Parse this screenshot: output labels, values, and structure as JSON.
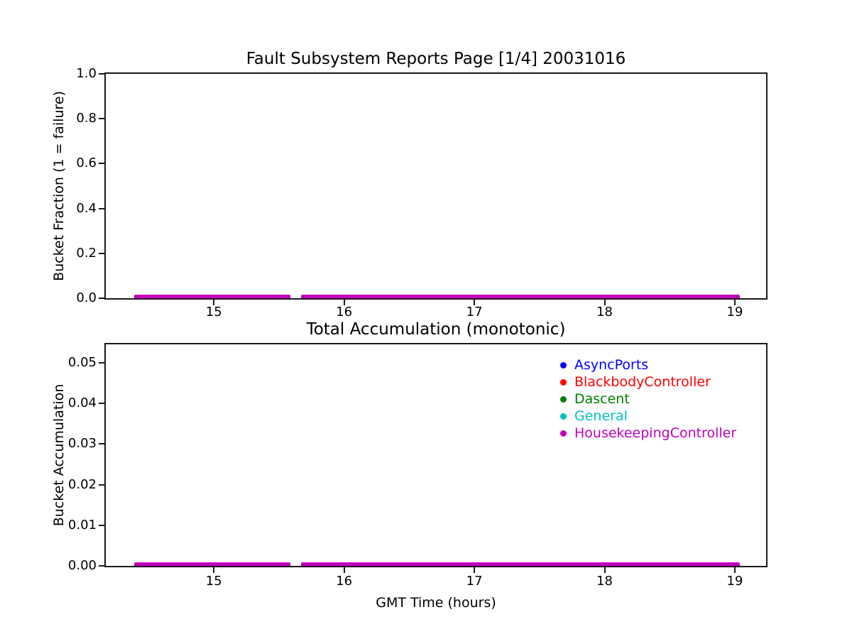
{
  "page": {
    "background": "#ffffff"
  },
  "colors": {
    "axes": "#1a1a1a",
    "text": "#000000",
    "background": "#ffffff",
    "series_overlap_edge": "#2a0028"
  },
  "chart_data": [
    {
      "type": "line",
      "title": "Fault Subsystem Reports Page [1/4] 20031016",
      "ylabel": "Bucket Fraction (1 = failure)",
      "xlabel": "",
      "xlim": [
        14.17,
        19.24
      ],
      "ylim": [
        0.0,
        1.0
      ],
      "grid": false,
      "legend_position": "none",
      "xticks": {
        "values": [
          15,
          16,
          17,
          18,
          19
        ],
        "labels": [
          "15",
          "16",
          "17",
          "18",
          "19"
        ]
      },
      "yticks": {
        "values": [
          0.0,
          0.2,
          0.4,
          0.6,
          0.8,
          1.0
        ],
        "labels": [
          "0.0",
          "0.2",
          "0.4",
          "0.6",
          "0.8",
          "1.0"
        ]
      },
      "series": [
        {
          "name": "AsyncPorts",
          "color": "#0000ff",
          "y_value": 0.0,
          "segments": [
            [
              14.39,
              15.59
            ],
            [
              15.67,
              19.04
            ]
          ]
        },
        {
          "name": "BlackbodyController",
          "color": "#ff0000",
          "y_value": 0.0,
          "segments": [
            [
              14.39,
              15.59
            ],
            [
              15.67,
              19.04
            ]
          ]
        },
        {
          "name": "Dascent",
          "color": "#008000",
          "y_value": 0.0,
          "segments": [
            [
              14.39,
              15.59
            ],
            [
              15.67,
              19.04
            ]
          ]
        },
        {
          "name": "General",
          "color": "#00bfbf",
          "y_value": 0.0,
          "segments": [
            [
              14.39,
              15.59
            ],
            [
              15.67,
              19.04
            ]
          ]
        },
        {
          "name": "HousekeepingController",
          "color": "#bf00bf",
          "y_value": 0.0,
          "segments": [
            [
              14.39,
              15.59
            ],
            [
              15.67,
              19.04
            ]
          ]
        }
      ],
      "annotation": "All five series lie flat at 0 and fully overlap; the magenta HousekeepingController line (drawn last) is visible on top, with a data gap near 15.6 h."
    },
    {
      "type": "line",
      "title": "Total Accumulation (monotonic)",
      "ylabel": "Bucket Accumulation",
      "xlabel": "GMT Time (hours)",
      "xlim": [
        14.17,
        19.24
      ],
      "ylim": [
        0.0,
        0.0545
      ],
      "grid": false,
      "legend": {
        "position": "upper right inside axes",
        "entries": [
          {
            "label": "AsyncPorts",
            "color": "#0000ff"
          },
          {
            "label": "BlackbodyController",
            "color": "#ff0000"
          },
          {
            "label": "Dascent",
            "color": "#008000"
          },
          {
            "label": "General",
            "color": "#00bfbf"
          },
          {
            "label": "HousekeepingController",
            "color": "#bf00bf"
          }
        ]
      },
      "xticks": {
        "values": [
          15,
          16,
          17,
          18,
          19
        ],
        "labels": [
          "15",
          "16",
          "17",
          "18",
          "19"
        ]
      },
      "yticks": {
        "values": [
          0.0,
          0.01,
          0.02,
          0.03,
          0.04,
          0.05
        ],
        "labels": [
          "0.00",
          "0.01",
          "0.02",
          "0.03",
          "0.04",
          "0.05"
        ]
      },
      "series": [
        {
          "name": "AsyncPorts",
          "color": "#0000ff",
          "y_value": 0.0,
          "segments": [
            [
              14.39,
              15.59
            ],
            [
              15.67,
              19.04
            ]
          ]
        },
        {
          "name": "BlackbodyController",
          "color": "#ff0000",
          "y_value": 0.0,
          "segments": [
            [
              14.39,
              15.59
            ],
            [
              15.67,
              19.04
            ]
          ]
        },
        {
          "name": "Dascent",
          "color": "#008000",
          "y_value": 0.0,
          "segments": [
            [
              14.39,
              15.59
            ],
            [
              15.67,
              19.04
            ]
          ]
        },
        {
          "name": "General",
          "color": "#00bfbf",
          "y_value": 0.0,
          "segments": [
            [
              14.39,
              15.59
            ],
            [
              15.67,
              19.04
            ]
          ]
        },
        {
          "name": "HousekeepingController",
          "color": "#bf00bf",
          "y_value": 0.0,
          "segments": [
            [
              14.39,
              15.59
            ],
            [
              15.67,
              19.04
            ]
          ]
        }
      ],
      "annotation": "All five accumulation series remain at 0 across the pass; lines overlap with magenta on top and a data gap near 15.6 h."
    }
  ]
}
